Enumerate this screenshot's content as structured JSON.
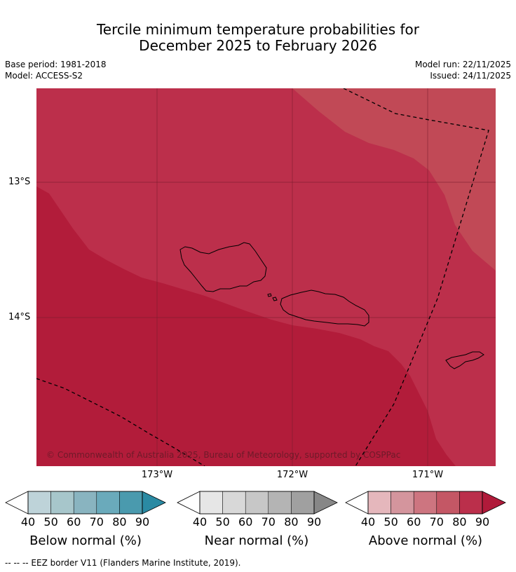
{
  "title": {
    "line1": "Tercile minimum temperature probabilities for",
    "line2": "December 2025 to February 2026"
  },
  "meta": {
    "base_period": "Base period: 1981-2018",
    "model": "Model: ACCESS-S2",
    "model_run": "Model run: 22/11/2025",
    "issued": "Issued: 24/11/2025"
  },
  "map": {
    "lat_labels": [
      "13°S",
      "14°S"
    ],
    "lon_labels": [
      "173°W",
      "172°W",
      "171°W"
    ],
    "copyright": "© Commonwealth of Australia 2025, Bureau of Meteorology, supported by COSPPac",
    "region_probabilities": {
      "outer_northeast": 70,
      "central_band": 80,
      "southwest": 90
    },
    "colors": {
      "p70": "#c14956",
      "p80": "#bc2f4b",
      "p90": "#b21c3a",
      "gridline": "#7a1c2c",
      "eez": "#000000",
      "coast": "#000000"
    }
  },
  "legends": [
    {
      "label": "Below normal (%)",
      "ticks": [
        "40",
        "50",
        "60",
        "70",
        "80",
        "90"
      ],
      "colors": [
        "#bed3d9",
        "#a7c6cb",
        "#89b4c0",
        "#6aaabb",
        "#4a9aae",
        "#2a8aa3"
      ]
    },
    {
      "label": "Near normal (%)",
      "ticks": [
        "40",
        "50",
        "60",
        "70",
        "80",
        "90"
      ],
      "colors": [
        "#e6e6e6",
        "#d8d8d8",
        "#c7c7c7",
        "#b4b4b4",
        "#a0a0a0",
        "#878787"
      ]
    },
    {
      "label": "Above normal (%)",
      "ticks": [
        "40",
        "50",
        "60",
        "70",
        "80",
        "90"
      ],
      "colors": [
        "#e5b7bc",
        "#d4959d",
        "#cd7580",
        "#c45765",
        "#bb2f4b",
        "#b01a3a"
      ]
    }
  ],
  "footer": "--  --  -- EEZ border V11 (Flanders Marine Institute, 2019)."
}
